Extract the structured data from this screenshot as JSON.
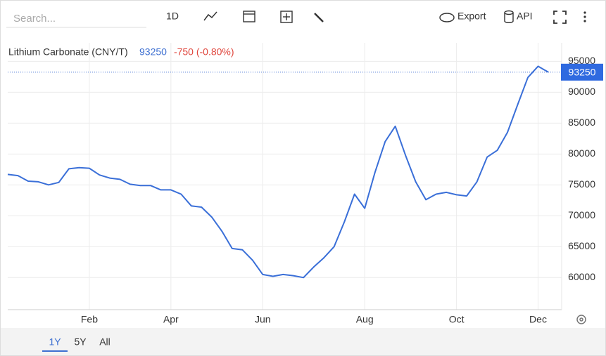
{
  "toolbar": {
    "search_placeholder": "Search...",
    "interval": "1D",
    "export": "Export",
    "api": "API"
  },
  "chart_data": {
    "type": "line",
    "title": "Lithium Carbonate (CNY/T)",
    "last_value": 93250,
    "change": "-750 (-0.80%)",
    "categories": [
      null,
      null,
      null,
      null,
      null,
      null,
      null,
      null,
      "Feb",
      null,
      null,
      null,
      null,
      null,
      null,
      null,
      "Apr",
      null,
      null,
      null,
      null,
      null,
      null,
      null,
      null,
      "Jun",
      null,
      null,
      null,
      null,
      null,
      null,
      null,
      null,
      null,
      "Aug",
      null,
      null,
      null,
      null,
      null,
      null,
      null,
      null,
      "Oct",
      null,
      null,
      null,
      null,
      null,
      null,
      null,
      "Dec",
      null
    ],
    "values": [
      76700,
      76500,
      75600,
      75500,
      75000,
      75400,
      77600,
      77800,
      77700,
      76600,
      76100,
      75900,
      75100,
      74900,
      74900,
      74200,
      74200,
      73500,
      71600,
      71400,
      69800,
      67500,
      64700,
      64500,
      62800,
      60500,
      60200,
      60500,
      60300,
      60000,
      61700,
      63200,
      65000,
      69000,
      73500,
      71200,
      77000,
      82000,
      84500,
      79800,
      75500,
      72600,
      73500,
      73800,
      73400,
      73200,
      75500,
      79500,
      80600,
      83500,
      88000,
      92400,
      94200,
      93250
    ],
    "color": "#3a6fd8",
    "ylim": [
      54800,
      98000
    ],
    "yticks": [
      60000,
      65000,
      70000,
      75000,
      80000,
      85000,
      90000,
      95000
    ],
    "grid": true
  },
  "range_buttons": [
    "1Y",
    "5Y",
    "All"
  ]
}
